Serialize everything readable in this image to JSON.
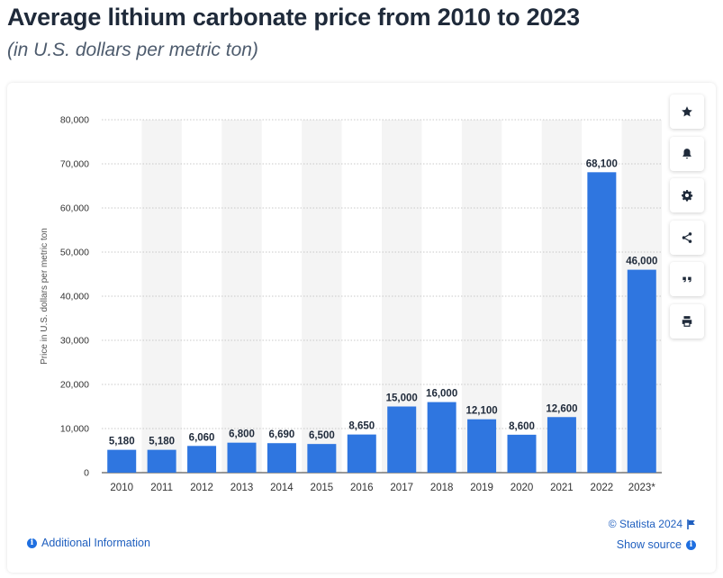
{
  "header": {
    "title": "Average lithium carbonate price from 2010 to 2023",
    "subtitle": "(in U.S. dollars per metric ton)"
  },
  "toolbar": {
    "icons": [
      "star-icon",
      "bell-icon",
      "gear-icon",
      "share-icon",
      "quote-icon",
      "print-icon"
    ]
  },
  "footer": {
    "additional_info": "Additional Information",
    "copyright": "© Statista 2024",
    "show_source": "Show source"
  },
  "colors": {
    "bar": "#2f76e0",
    "band": "#f4f4f4",
    "link": "#1f5fbf"
  },
  "chart_data": {
    "type": "bar",
    "categories": [
      "2010",
      "2011",
      "2012",
      "2013",
      "2014",
      "2015",
      "2016",
      "2017",
      "2018",
      "2019",
      "2020",
      "2021",
      "2022",
      "2023*"
    ],
    "values": [
      5180,
      5180,
      6060,
      6800,
      6690,
      6500,
      8650,
      15000,
      16000,
      12100,
      8600,
      12600,
      68100,
      46000
    ],
    "value_labels": [
      "5,180",
      "5,180",
      "6,060",
      "6,800",
      "6,690",
      "6,500",
      "8,650",
      "15,000",
      "16,000",
      "12,100",
      "8,600",
      "12,600",
      "68,100",
      "46,000"
    ],
    "ylabel": "Price in U.S. dollars per metric ton",
    "xlabel": "",
    "ylim": [
      0,
      80000
    ],
    "yticks": [
      0,
      10000,
      20000,
      30000,
      40000,
      50000,
      60000,
      70000,
      80000
    ],
    "ytick_labels": [
      "0",
      "10,000",
      "20,000",
      "30,000",
      "40,000",
      "50,000",
      "60,000",
      "70,000",
      "80,000"
    ],
    "grid": true
  }
}
